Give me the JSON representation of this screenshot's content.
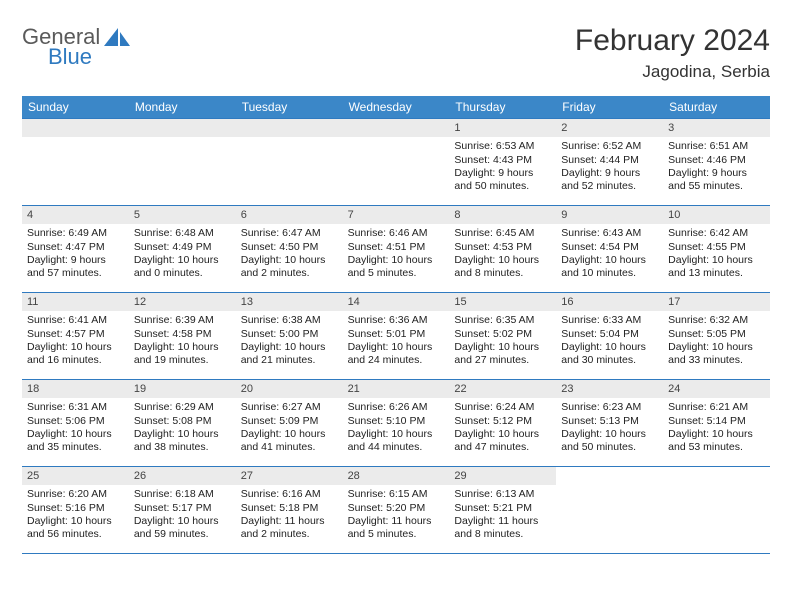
{
  "brand": {
    "line1": "General",
    "line2": "Blue"
  },
  "title": "February 2024",
  "location": "Jagodina, Serbia",
  "colors": {
    "header_bar": "#3b87c8",
    "rule": "#2f7ac0",
    "daynum_bg": "#ebebeb",
    "text": "#222222",
    "logo_gray": "#5a5a5a",
    "logo_blue": "#2f7ac0"
  },
  "weekdays": [
    "Sunday",
    "Monday",
    "Tuesday",
    "Wednesday",
    "Thursday",
    "Friday",
    "Saturday"
  ],
  "weeks": [
    [
      null,
      null,
      null,
      null,
      {
        "n": "1",
        "sr": "6:53 AM",
        "ss": "4:43 PM",
        "dl": "9 hours and 50 minutes."
      },
      {
        "n": "2",
        "sr": "6:52 AM",
        "ss": "4:44 PM",
        "dl": "9 hours and 52 minutes."
      },
      {
        "n": "3",
        "sr": "6:51 AM",
        "ss": "4:46 PM",
        "dl": "9 hours and 55 minutes."
      }
    ],
    [
      {
        "n": "4",
        "sr": "6:49 AM",
        "ss": "4:47 PM",
        "dl": "9 hours and 57 minutes."
      },
      {
        "n": "5",
        "sr": "6:48 AM",
        "ss": "4:49 PM",
        "dl": "10 hours and 0 minutes."
      },
      {
        "n": "6",
        "sr": "6:47 AM",
        "ss": "4:50 PM",
        "dl": "10 hours and 2 minutes."
      },
      {
        "n": "7",
        "sr": "6:46 AM",
        "ss": "4:51 PM",
        "dl": "10 hours and 5 minutes."
      },
      {
        "n": "8",
        "sr": "6:45 AM",
        "ss": "4:53 PM",
        "dl": "10 hours and 8 minutes."
      },
      {
        "n": "9",
        "sr": "6:43 AM",
        "ss": "4:54 PM",
        "dl": "10 hours and 10 minutes."
      },
      {
        "n": "10",
        "sr": "6:42 AM",
        "ss": "4:55 PM",
        "dl": "10 hours and 13 minutes."
      }
    ],
    [
      {
        "n": "11",
        "sr": "6:41 AM",
        "ss": "4:57 PM",
        "dl": "10 hours and 16 minutes."
      },
      {
        "n": "12",
        "sr": "6:39 AM",
        "ss": "4:58 PM",
        "dl": "10 hours and 19 minutes."
      },
      {
        "n": "13",
        "sr": "6:38 AM",
        "ss": "5:00 PM",
        "dl": "10 hours and 21 minutes."
      },
      {
        "n": "14",
        "sr": "6:36 AM",
        "ss": "5:01 PM",
        "dl": "10 hours and 24 minutes."
      },
      {
        "n": "15",
        "sr": "6:35 AM",
        "ss": "5:02 PM",
        "dl": "10 hours and 27 minutes."
      },
      {
        "n": "16",
        "sr": "6:33 AM",
        "ss": "5:04 PM",
        "dl": "10 hours and 30 minutes."
      },
      {
        "n": "17",
        "sr": "6:32 AM",
        "ss": "5:05 PM",
        "dl": "10 hours and 33 minutes."
      }
    ],
    [
      {
        "n": "18",
        "sr": "6:31 AM",
        "ss": "5:06 PM",
        "dl": "10 hours and 35 minutes."
      },
      {
        "n": "19",
        "sr": "6:29 AM",
        "ss": "5:08 PM",
        "dl": "10 hours and 38 minutes."
      },
      {
        "n": "20",
        "sr": "6:27 AM",
        "ss": "5:09 PM",
        "dl": "10 hours and 41 minutes."
      },
      {
        "n": "21",
        "sr": "6:26 AM",
        "ss": "5:10 PM",
        "dl": "10 hours and 44 minutes."
      },
      {
        "n": "22",
        "sr": "6:24 AM",
        "ss": "5:12 PM",
        "dl": "10 hours and 47 minutes."
      },
      {
        "n": "23",
        "sr": "6:23 AM",
        "ss": "5:13 PM",
        "dl": "10 hours and 50 minutes."
      },
      {
        "n": "24",
        "sr": "6:21 AM",
        "ss": "5:14 PM",
        "dl": "10 hours and 53 minutes."
      }
    ],
    [
      {
        "n": "25",
        "sr": "6:20 AM",
        "ss": "5:16 PM",
        "dl": "10 hours and 56 minutes."
      },
      {
        "n": "26",
        "sr": "6:18 AM",
        "ss": "5:17 PM",
        "dl": "10 hours and 59 minutes."
      },
      {
        "n": "27",
        "sr": "6:16 AM",
        "ss": "5:18 PM",
        "dl": "11 hours and 2 minutes."
      },
      {
        "n": "28",
        "sr": "6:15 AM",
        "ss": "5:20 PM",
        "dl": "11 hours and 5 minutes."
      },
      {
        "n": "29",
        "sr": "6:13 AM",
        "ss": "5:21 PM",
        "dl": "11 hours and 8 minutes."
      },
      null,
      null
    ]
  ],
  "labels": {
    "sunrise": "Sunrise: ",
    "sunset": "Sunset: ",
    "daylight": "Daylight: "
  }
}
